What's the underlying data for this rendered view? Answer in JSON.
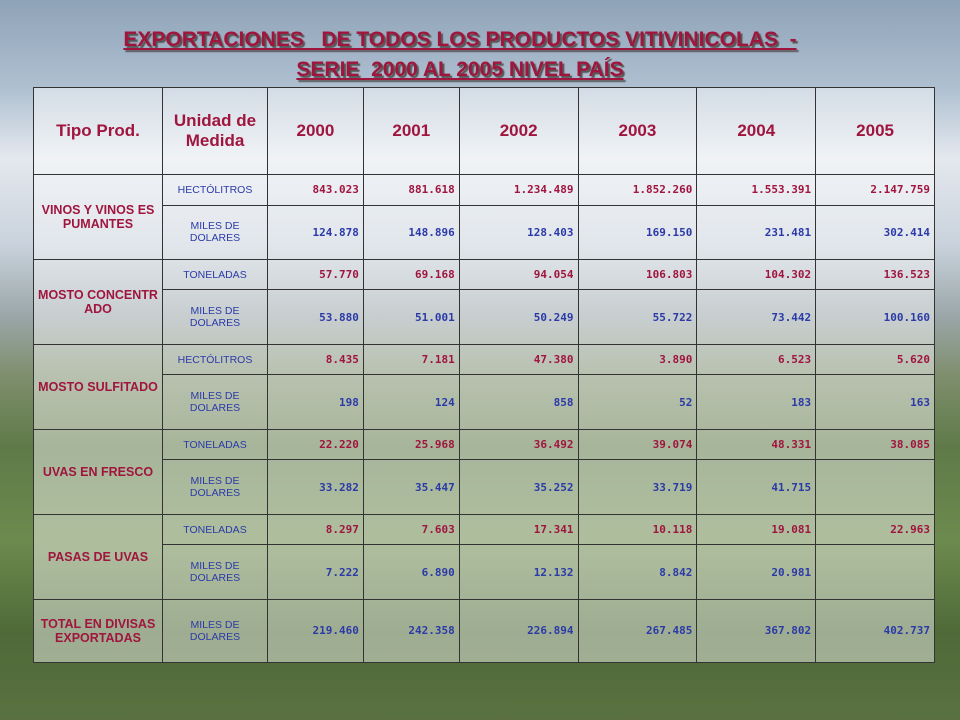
{
  "header": {
    "title_line1": "EXPORTACIONES   DE TODOS LOS PRODUCTOS VITIVINICOLAS  -",
    "title_line2": "SERIE  2000 AL 2005 NIVEL PAÍS"
  },
  "table": {
    "columns": [
      "Tipo Prod.",
      "Unidad de Medida",
      "2000",
      "2001",
      "2002",
      "2003",
      "2004",
      "2005"
    ],
    "groups": [
      {
        "product": "VINOS Y VINOS ESPUMANTES",
        "rows": [
          {
            "unit": "HECTÓLITROS",
            "values": [
              "843.023",
              "881.618",
              "1.234.489",
              "1.852.260",
              "1.553.391",
              "2.147.759"
            ]
          },
          {
            "unit": "MILES DE DOLARES",
            "values": [
              "124.878",
              "148.896",
              "128.403",
              "169.150",
              "231.481",
              "302.414"
            ]
          }
        ]
      },
      {
        "product": "MOSTO CONCENTRADO",
        "rows": [
          {
            "unit": "TONELADAS",
            "values": [
              "57.770",
              "69.168",
              "94.054",
              "106.803",
              "104.302",
              "136.523"
            ]
          },
          {
            "unit": "MILES DE DOLARES",
            "values": [
              "53.880",
              "51.001",
              "50.249",
              "55.722",
              "73.442",
              "100.160"
            ]
          }
        ]
      },
      {
        "product": "MOSTO SULFITADO",
        "rows": [
          {
            "unit": "HECTÓLITROS",
            "values": [
              "8.435",
              "7.181",
              "47.380",
              "3.890",
              "6.523",
              "5.620"
            ]
          },
          {
            "unit": "MILES DE DOLARES",
            "values": [
              "198",
              "124",
              "858",
              "52",
              "183",
              "163"
            ]
          }
        ]
      },
      {
        "product": "UVAS EN FRESCO",
        "rows": [
          {
            "unit": "TONELADAS",
            "values": [
              "22.220",
              "25.968",
              "36.492",
              "39.074",
              "48.331",
              "38.085"
            ]
          },
          {
            "unit": "MILES DE DOLARES",
            "values": [
              "33.282",
              "35.447",
              "35.252",
              "33.719",
              "41.715",
              null
            ]
          }
        ]
      },
      {
        "product": "PASAS DE UVAS",
        "rows": [
          {
            "unit": "TONELADAS",
            "values": [
              "8.297",
              "7.603",
              "17.341",
              "10.118",
              "19.081",
              "22.963"
            ]
          },
          {
            "unit": "MILES DE DOLARES",
            "values": [
              "7.222",
              "6.890",
              "12.132",
              "8.842",
              "20.981",
              null
            ]
          }
        ]
      },
      {
        "product": "TOTAL EN DIVISAS EXPORTADAS",
        "rows": [
          {
            "unit": "MILES DE DOLARES",
            "values": [
              "219.460",
              "242.358",
              "226.894",
              "267.485",
              "367.802",
              "402.737"
            ]
          }
        ]
      }
    ]
  }
}
